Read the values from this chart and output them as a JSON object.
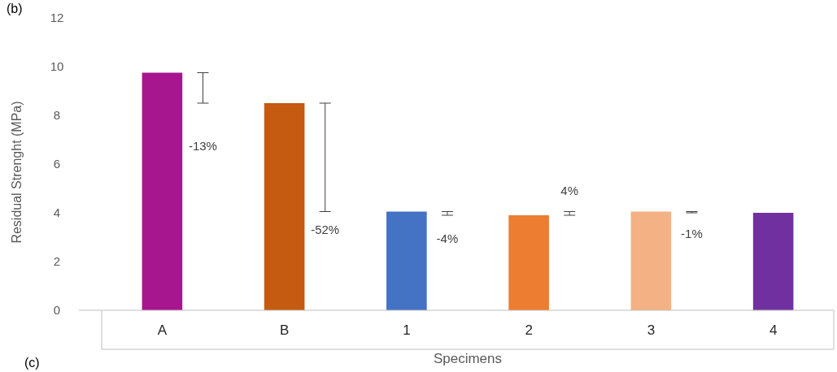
{
  "chart_data": {
    "type": "bar",
    "xlabel": "Specimens",
    "ylabel": "Residual Strenght (MPa)",
    "categories": [
      "A",
      "B",
      "1",
      "2",
      "3",
      "4"
    ],
    "values": [
      9.75,
      8.5,
      4.05,
      3.9,
      4.05,
      4.0
    ],
    "colors": [
      "#a8168f",
      "#c55a11",
      "#4472c4",
      "#ed7d31",
      "#f4b183",
      "#7030a0"
    ],
    "ylim": [
      0,
      12
    ],
    "yticks": [
      0,
      2,
      4,
      6,
      8,
      10,
      12
    ],
    "grid": false,
    "annotations": [
      "-13%",
      "-52%",
      "-4%",
      "4%",
      "-1%",
      "(b)",
      "(c)"
    ]
  }
}
